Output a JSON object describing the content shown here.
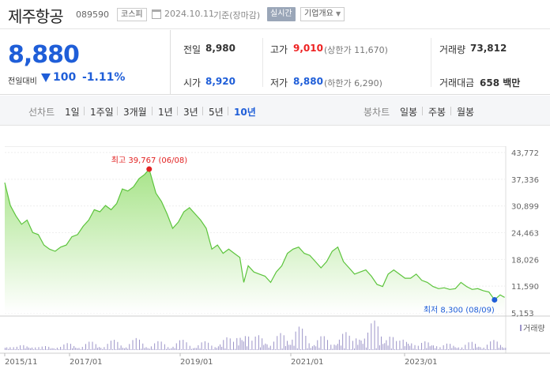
{
  "header": {
    "stock_name": "제주항공",
    "stock_code": "089590",
    "market": "코스피",
    "date": "2024.10.11",
    "date_basis": "기준(장마감)",
    "realtime_label": "실시간",
    "company_label": "기업개요"
  },
  "quote": {
    "price": "8,880",
    "change_label": "전일대비",
    "change_amount": "100",
    "change_percent": "-1.11%",
    "stats": {
      "prev_close_label": "전일",
      "prev_close": "8,980",
      "open_label": "시가",
      "open": "8,920",
      "high_label": "고가",
      "high": "9,010",
      "upper_limit": "(상한가 11,670)",
      "low_label": "저가",
      "low": "8,880",
      "lower_limit": "(하한가 6,290)",
      "volume_label": "거래량",
      "volume": "73,812",
      "amount_label": "거래대금",
      "amount": "658 백만"
    }
  },
  "tabs": {
    "line_label": "선차트",
    "line_items": [
      "1일",
      "1주일",
      "3개월",
      "1년",
      "3년",
      "5년",
      "10년"
    ],
    "active": "10년",
    "candle_label": "봉차트",
    "candle_items": [
      "일봉",
      "주봉",
      "월봉"
    ]
  },
  "chart_data": {
    "type": "area",
    "y_ticks": [
      "43,772",
      "37,336",
      "30,899",
      "24,463",
      "18,026",
      "11,590",
      "5,153"
    ],
    "ylim": [
      5153,
      43772
    ],
    "x_ticks": [
      "2015/11",
      "2017/01",
      "2019/01",
      "2021/01",
      "2023/01"
    ],
    "max_label": "최고 39,767 (06/08)",
    "min_label": "최저 8,300 (08/09)",
    "volume_label": "거래량",
    "colors": {
      "line": "#5cc43c",
      "fill_top": "#a8e48a",
      "fill_bottom": "#ffffff",
      "max": "#e22222",
      "min": "#1f5ed8",
      "volume": "#9c94c8"
    },
    "points": [
      [
        2015.85,
        36500
      ],
      [
        2015.95,
        31000
      ],
      [
        2016.05,
        28500
      ],
      [
        2016.15,
        26500
      ],
      [
        2016.25,
        27500
      ],
      [
        2016.35,
        24500
      ],
      [
        2016.45,
        24000
      ],
      [
        2016.55,
        21500
      ],
      [
        2016.65,
        20500
      ],
      [
        2016.75,
        20000
      ],
      [
        2016.85,
        21000
      ],
      [
        2016.95,
        21500
      ],
      [
        2017.05,
        23500
      ],
      [
        2017.15,
        24000
      ],
      [
        2017.25,
        26000
      ],
      [
        2017.35,
        27500
      ],
      [
        2017.45,
        30000
      ],
      [
        2017.55,
        29500
      ],
      [
        2017.65,
        31000
      ],
      [
        2017.75,
        30000
      ],
      [
        2017.85,
        31500
      ],
      [
        2017.95,
        35000
      ],
      [
        2018.05,
        34500
      ],
      [
        2018.15,
        35500
      ],
      [
        2018.25,
        37500
      ],
      [
        2018.35,
        38500
      ],
      [
        2018.43,
        39767
      ],
      [
        2018.55,
        34000
      ],
      [
        2018.65,
        32000
      ],
      [
        2018.75,
        29000
      ],
      [
        2018.85,
        25500
      ],
      [
        2018.95,
        27000
      ],
      [
        2019.05,
        29500
      ],
      [
        2019.15,
        30500
      ],
      [
        2019.25,
        29000
      ],
      [
        2019.35,
        27500
      ],
      [
        2019.45,
        25500
      ],
      [
        2019.55,
        20500
      ],
      [
        2019.65,
        21500
      ],
      [
        2019.75,
        19500
      ],
      [
        2019.85,
        20500
      ],
      [
        2019.95,
        19500
      ],
      [
        2020.05,
        18500
      ],
      [
        2020.12,
        12500
      ],
      [
        2020.2,
        16500
      ],
      [
        2020.3,
        15000
      ],
      [
        2020.4,
        14500
      ],
      [
        2020.5,
        14000
      ],
      [
        2020.6,
        12500
      ],
      [
        2020.7,
        15000
      ],
      [
        2020.8,
        16500
      ],
      [
        2020.9,
        19500
      ],
      [
        2021.0,
        20500
      ],
      [
        2021.1,
        21000
      ],
      [
        2021.2,
        19500
      ],
      [
        2021.3,
        19000
      ],
      [
        2021.4,
        17500
      ],
      [
        2021.5,
        16000
      ],
      [
        2021.6,
        17500
      ],
      [
        2021.7,
        20000
      ],
      [
        2021.8,
        21000
      ],
      [
        2021.9,
        17500
      ],
      [
        2022.0,
        16000
      ],
      [
        2022.1,
        14500
      ],
      [
        2022.2,
        15000
      ],
      [
        2022.3,
        15500
      ],
      [
        2022.4,
        14000
      ],
      [
        2022.5,
        12000
      ],
      [
        2022.6,
        11500
      ],
      [
        2022.7,
        14500
      ],
      [
        2022.8,
        15500
      ],
      [
        2022.9,
        14500
      ],
      [
        2023.0,
        13500
      ],
      [
        2023.1,
        13500
      ],
      [
        2023.2,
        14500
      ],
      [
        2023.3,
        13000
      ],
      [
        2023.4,
        12500
      ],
      [
        2023.5,
        11500
      ],
      [
        2023.6,
        11000
      ],
      [
        2023.7,
        11200
      ],
      [
        2023.8,
        10800
      ],
      [
        2023.9,
        11000
      ],
      [
        2024.0,
        12500
      ],
      [
        2024.1,
        11500
      ],
      [
        2024.2,
        10800
      ],
      [
        2024.3,
        11000
      ],
      [
        2024.4,
        10500
      ],
      [
        2024.5,
        10200
      ],
      [
        2024.6,
        8300
      ],
      [
        2024.7,
        9500
      ],
      [
        2024.78,
        8880
      ]
    ],
    "volume": [
      [
        2015.85,
        0.15
      ],
      [
        2016.2,
        0.2
      ],
      [
        2016.6,
        0.15
      ],
      [
        2017.0,
        0.25
      ],
      [
        2017.4,
        0.3
      ],
      [
        2017.8,
        0.35
      ],
      [
        2018.2,
        0.4
      ],
      [
        2018.6,
        0.3
      ],
      [
        2019.0,
        0.35
      ],
      [
        2019.4,
        0.3
      ],
      [
        2019.8,
        0.45
      ],
      [
        2020.1,
        0.7
      ],
      [
        2020.4,
        0.55
      ],
      [
        2020.8,
        0.6
      ],
      [
        2021.1,
        0.8
      ],
      [
        2021.5,
        0.5
      ],
      [
        2021.9,
        0.65
      ],
      [
        2022.2,
        0.6
      ],
      [
        2022.45,
        1.0
      ],
      [
        2022.7,
        0.55
      ],
      [
        2023.0,
        0.45
      ],
      [
        2023.4,
        0.35
      ],
      [
        2023.8,
        0.25
      ],
      [
        2024.2,
        0.3
      ],
      [
        2024.6,
        0.35
      ]
    ]
  }
}
